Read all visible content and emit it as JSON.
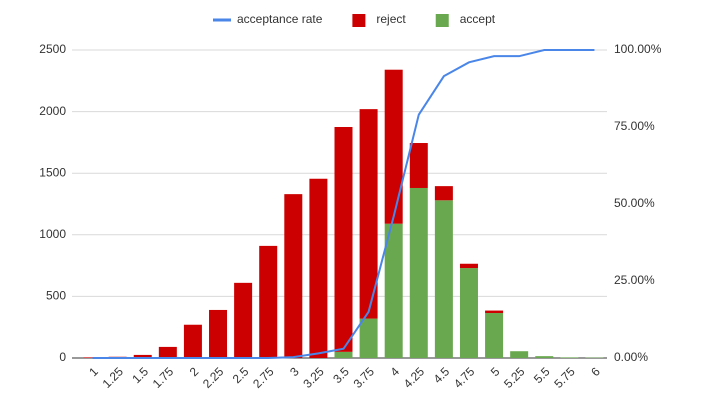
{
  "chart_data": {
    "type": "combo",
    "categories": [
      "1",
      "1.25",
      "1.5",
      "1.75",
      "2",
      "2.25",
      "2.5",
      "2.75",
      "3",
      "3.25",
      "3.5",
      "3.75",
      "4",
      "4.25",
      "4.5",
      "4.75",
      "5",
      "5.25",
      "5.5",
      "5.75",
      "6"
    ],
    "series": [
      {
        "name": "acceptance rate",
        "type": "line",
        "axis": "y2",
        "color": "#4a86e8",
        "values": [
          0,
          0,
          0,
          0,
          0,
          0,
          0,
          0,
          0.3,
          1.5,
          3,
          15,
          46,
          79,
          91.5,
          96,
          98,
          98,
          100,
          100,
          100
        ]
      },
      {
        "name": "reject",
        "type": "bar",
        "color": "#cc0000",
        "values": [
          5,
          10,
          25,
          90,
          270,
          390,
          610,
          910,
          1330,
          1455,
          1825,
          1700,
          1250,
          365,
          115,
          35,
          20,
          0,
          0,
          0,
          0
        ]
      },
      {
        "name": "accept",
        "type": "bar",
        "color": "#6aa84f",
        "values": [
          0,
          0,
          0,
          0,
          0,
          0,
          0,
          0,
          0,
          0,
          50,
          320,
          1090,
          1380,
          1280,
          730,
          365,
          55,
          15,
          5,
          3
        ]
      }
    ],
    "stacked": true,
    "ylim": [
      0,
      2500
    ],
    "yticks": [
      0,
      500,
      1000,
      1500,
      2000,
      2500
    ],
    "y2lim": [
      0,
      100
    ],
    "y2ticks": [
      {
        "value": 0,
        "label": "0.00%"
      },
      {
        "value": 25,
        "label": "25.00%"
      },
      {
        "value": 50,
        "label": "50.00%"
      },
      {
        "value": 75,
        "label": "75.00%"
      },
      {
        "value": 100,
        "label": "100.00%"
      }
    ],
    "grid": true,
    "legend": "top"
  }
}
